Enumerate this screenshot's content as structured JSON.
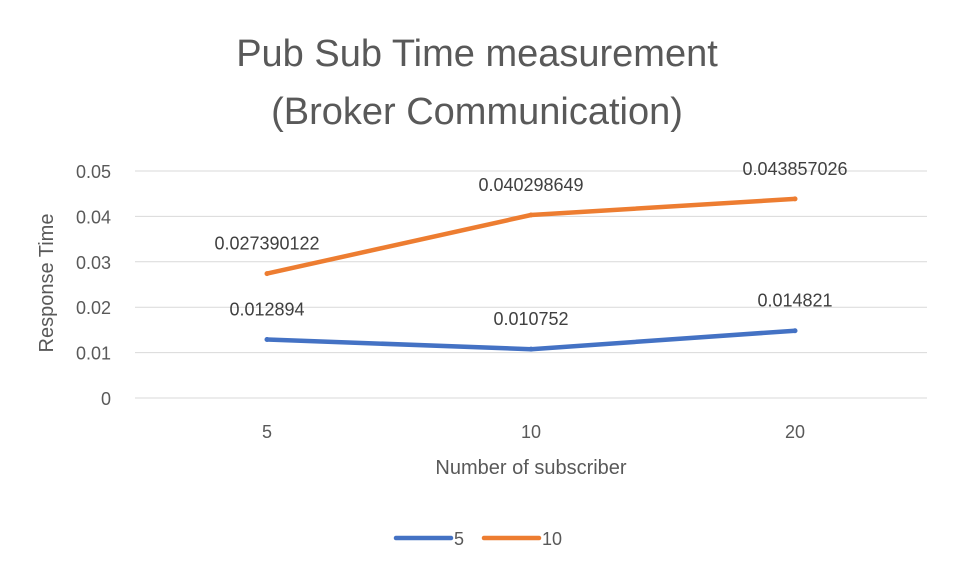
{
  "chart_data": {
    "type": "line",
    "title_lines": [
      "Pub Sub Time measurement",
      "(Broker Communication)"
    ],
    "xlabel": "Number of subscriber",
    "ylabel": "Response Time",
    "categories": [
      "5",
      "10",
      "20"
    ],
    "ylim": [
      0,
      0.05
    ],
    "yticks": [
      0,
      0.01,
      0.02,
      0.03,
      0.04,
      0.05
    ],
    "ytick_labels": [
      "0",
      "0.01",
      "0.02",
      "0.03",
      "0.04",
      "0.05"
    ],
    "grid": true,
    "legend_position": "bottom",
    "series": [
      {
        "name": "5",
        "color": "#4472C4",
        "values": [
          0.012894,
          0.010752,
          0.014821
        ],
        "labels": [
          "0.012894",
          "0.010752",
          "0.014821"
        ]
      },
      {
        "name": "10",
        "color": "#ED7D31",
        "values": [
          0.027390122,
          0.040298649,
          0.043857026
        ],
        "labels": [
          "0.027390122",
          "0.040298649",
          "0.043857026"
        ]
      }
    ]
  }
}
